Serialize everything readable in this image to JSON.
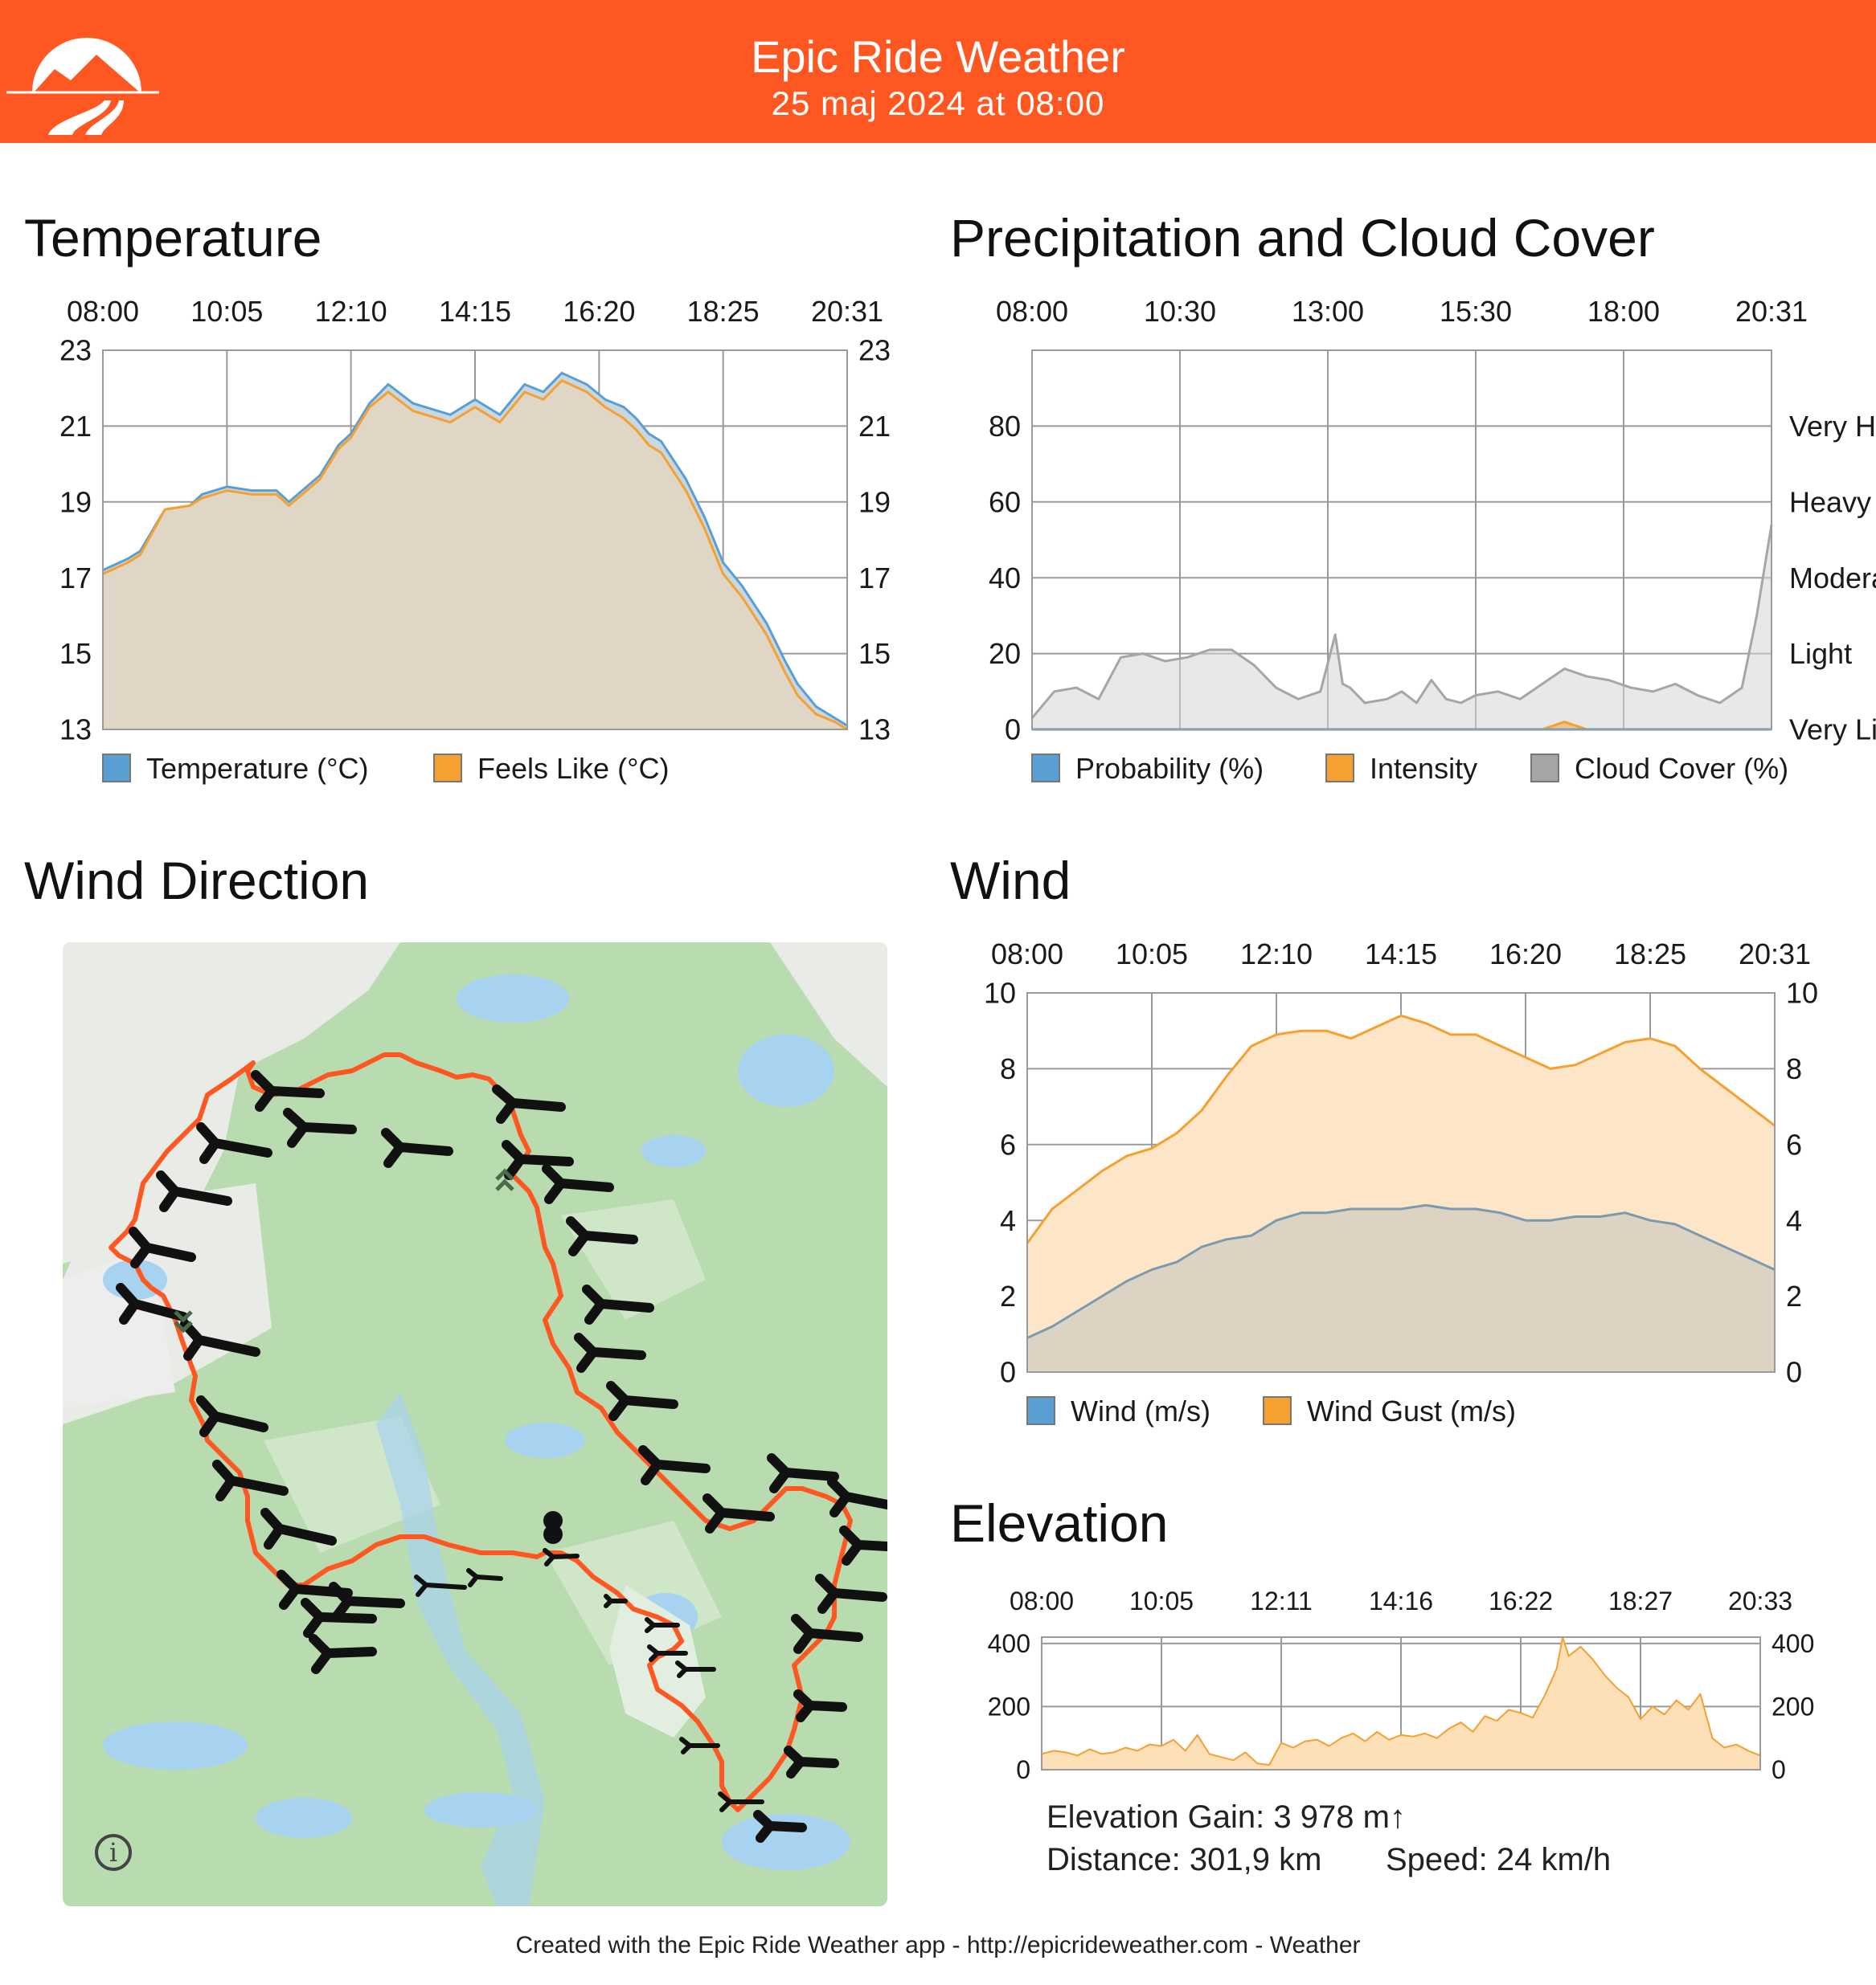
{
  "header": {
    "title": "Epic Ride Weather",
    "subtitle": "25 maj 2024 at 08:00",
    "bg_color": "#ff5722"
  },
  "footer": {
    "text": "Created with the Epic Ride Weather app - http://epicrideweather.com - ",
    "apple_icon": "",
    "weather": "Weather"
  },
  "temperature": {
    "title": "Temperature"
  },
  "precip": {
    "title": "Precipitation and Cloud Cover"
  },
  "wind_dir": {
    "title": "Wind Direction",
    "info_icon": "i"
  },
  "wind": {
    "title": "Wind"
  },
  "elevation": {
    "title": "Elevation",
    "gain": "Elevation Gain: 3 978 m↑",
    "distance": "Distance: 301,9 km",
    "speed": "Speed: 24 km/h"
  },
  "chart_data": [
    {
      "id": "temperature",
      "type": "area",
      "title": "Temperature",
      "x_ticks": [
        "08:00",
        "10:05",
        "12:10",
        "14:15",
        "16:20",
        "18:25",
        "20:31"
      ],
      "ylim": [
        13,
        23
      ],
      "y_ticks": [
        13,
        15,
        17,
        19,
        21,
        23
      ],
      "grid": true,
      "legend": "bottom",
      "x": [
        0,
        0.2,
        0.3,
        0.5,
        0.7,
        0.8,
        1,
        1.2,
        1.4,
        1.5,
        1.75,
        1.9,
        2,
        2.15,
        2.3,
        2.5,
        2.6,
        2.8,
        3,
        3.2,
        3.4,
        3.55,
        3.7,
        3.9,
        4.05,
        4.2,
        4.3,
        4.4,
        4.5,
        4.6,
        4.7,
        4.85,
        5,
        5.15,
        5.35,
        5.5,
        5.6,
        5.75,
        5.9,
        6
      ],
      "series": [
        {
          "name": "Temperature (°C)",
          "color": "#5a9fd4",
          "values": [
            17.2,
            17.5,
            17.7,
            18.8,
            18.9,
            19.2,
            19.4,
            19.3,
            19.3,
            19.0,
            19.7,
            20.5,
            20.8,
            21.6,
            22.1,
            21.6,
            21.5,
            21.3,
            21.7,
            21.3,
            22.1,
            21.9,
            22.4,
            22.1,
            21.7,
            21.5,
            21.2,
            20.8,
            20.6,
            20.1,
            19.6,
            18.6,
            17.4,
            16.8,
            15.8,
            14.8,
            14.2,
            13.6,
            13.3,
            13.1
          ]
        },
        {
          "name": "Feels Like (°C)",
          "color": "#f5a030",
          "values": [
            17.1,
            17.4,
            17.6,
            18.8,
            18.9,
            19.1,
            19.3,
            19.2,
            19.2,
            18.9,
            19.6,
            20.4,
            20.7,
            21.5,
            21.9,
            21.4,
            21.3,
            21.1,
            21.5,
            21.1,
            21.9,
            21.7,
            22.2,
            21.9,
            21.5,
            21.2,
            20.9,
            20.5,
            20.3,
            19.8,
            19.3,
            18.3,
            17.1,
            16.5,
            15.5,
            14.5,
            13.9,
            13.4,
            13.2,
            13.0
          ]
        }
      ]
    },
    {
      "id": "precipitation",
      "type": "area",
      "title": "Precipitation and Cloud Cover",
      "x_ticks": [
        "08:00",
        "10:30",
        "13:00",
        "15:30",
        "18:00",
        "20:31"
      ],
      "ylim": [
        0,
        100
      ],
      "y_ticks": [
        0,
        20,
        40,
        60,
        80
      ],
      "y2_ticks": [
        "Very Light",
        "Light",
        "Moderate",
        "Heavy",
        "Very Heavy"
      ],
      "grid": true,
      "legend": "bottom",
      "x": [
        0,
        0.15,
        0.3,
        0.45,
        0.6,
        0.75,
        0.9,
        1.05,
        1.2,
        1.35,
        1.5,
        1.65,
        1.8,
        1.95,
        2.05,
        2.1,
        2.15,
        2.25,
        2.4,
        2.5,
        2.6,
        2.7,
        2.8,
        2.9,
        3.0,
        3.15,
        3.3,
        3.45,
        3.6,
        3.75,
        3.9,
        4.05,
        4.2,
        4.35,
        4.5,
        4.65,
        4.8,
        4.9,
        5
      ],
      "series": [
        {
          "name": "Probability (%)",
          "color": "#5a9fd4",
          "values": [
            0,
            0,
            0,
            0,
            0,
            0,
            0,
            0,
            0,
            0,
            0,
            0,
            0,
            0,
            0,
            0,
            0,
            0,
            0,
            0,
            0,
            0,
            0,
            0,
            0,
            0,
            0,
            0,
            0,
            0,
            0,
            0,
            0,
            0,
            0,
            0,
            0,
            0,
            0
          ]
        },
        {
          "name": "Intensity",
          "color": "#f5a030",
          "values": [
            0,
            0,
            0,
            0,
            0,
            0,
            0,
            0,
            0,
            0,
            0,
            0,
            0,
            0,
            0,
            0,
            0,
            0,
            0,
            0,
            0,
            0,
            0,
            0,
            0,
            0,
            0,
            0,
            2,
            0,
            0,
            0,
            0,
            0,
            0,
            0,
            0,
            0,
            0
          ]
        },
        {
          "name": "Cloud Cover (%)",
          "color": "#a6a6a6",
          "values": [
            3,
            10,
            11,
            8,
            19,
            20,
            18,
            19,
            21,
            21,
            17,
            11,
            8,
            10,
            25,
            12,
            11,
            7,
            8,
            10,
            7,
            13,
            8,
            7,
            9,
            10,
            8,
            12,
            16,
            14,
            13,
            11,
            10,
            12,
            9,
            7,
            11,
            30,
            54
          ]
        }
      ]
    },
    {
      "id": "wind",
      "type": "area",
      "title": "Wind",
      "x_ticks": [
        "08:00",
        "10:05",
        "12:10",
        "14:15",
        "16:20",
        "18:25",
        "20:31"
      ],
      "ylim": [
        0,
        10
      ],
      "y_ticks": [
        0,
        2,
        4,
        6,
        8,
        10
      ],
      "grid": true,
      "legend": "bottom",
      "x": [
        0,
        0.2,
        0.4,
        0.6,
        0.8,
        1,
        1.2,
        1.4,
        1.6,
        1.8,
        2,
        2.2,
        2.4,
        2.6,
        2.8,
        3,
        3.2,
        3.4,
        3.6,
        3.8,
        4,
        4.2,
        4.4,
        4.6,
        4.8,
        5,
        5.2,
        5.4,
        5.6,
        5.8,
        6
      ],
      "series": [
        {
          "name": "Wind (m/s)",
          "color": "#5a9fd4",
          "values": [
            0.9,
            1.2,
            1.6,
            2.0,
            2.4,
            2.7,
            2.9,
            3.3,
            3.5,
            3.6,
            4.0,
            4.2,
            4.2,
            4.3,
            4.3,
            4.3,
            4.4,
            4.3,
            4.3,
            4.2,
            4.0,
            4.0,
            4.1,
            4.1,
            4.2,
            4.0,
            3.9,
            3.6,
            3.3,
            3.0,
            2.7
          ]
        },
        {
          "name": "Wind Gust (m/s)",
          "color": "#f5a030",
          "values": [
            3.4,
            4.3,
            4.8,
            5.3,
            5.7,
            5.9,
            6.3,
            6.9,
            7.8,
            8.6,
            8.9,
            9.0,
            9.0,
            8.8,
            9.1,
            9.4,
            9.2,
            8.9,
            8.9,
            8.6,
            8.3,
            8.0,
            8.1,
            8.4,
            8.7,
            8.8,
            8.6,
            8.0,
            7.5,
            7.0,
            6.5
          ]
        }
      ]
    },
    {
      "id": "elevation",
      "type": "area",
      "title": "Elevation",
      "x_ticks": [
        "08:00",
        "10:05",
        "12:11",
        "14:16",
        "16:22",
        "18:27",
        "20:33"
      ],
      "ylim": [
        0,
        420
      ],
      "y_ticks": [
        0,
        200,
        400
      ],
      "grid": true,
      "x": [
        0,
        0.1,
        0.2,
        0.3,
        0.4,
        0.5,
        0.6,
        0.7,
        0.8,
        0.9,
        1.0,
        1.1,
        1.2,
        1.3,
        1.4,
        1.5,
        1.6,
        1.7,
        1.8,
        1.9,
        2.0,
        2.1,
        2.2,
        2.3,
        2.4,
        2.5,
        2.6,
        2.7,
        2.8,
        2.9,
        3.0,
        3.1,
        3.2,
        3.3,
        3.4,
        3.5,
        3.6,
        3.7,
        3.8,
        3.9,
        4.0,
        4.1,
        4.2,
        4.3,
        4.35,
        4.4,
        4.5,
        4.6,
        4.7,
        4.8,
        4.9,
        5.0,
        5.1,
        5.2,
        5.3,
        5.4,
        5.5,
        5.6,
        5.7,
        5.8,
        5.9,
        6.0
      ],
      "series": [
        {
          "name": "Elevation",
          "color": "#f5a030",
          "values": [
            50,
            60,
            55,
            45,
            65,
            50,
            55,
            70,
            60,
            80,
            75,
            95,
            60,
            110,
            50,
            40,
            30,
            55,
            20,
            15,
            85,
            70,
            90,
            95,
            75,
            100,
            115,
            90,
            120,
            95,
            110,
            105,
            115,
            100,
            130,
            150,
            120,
            170,
            155,
            190,
            180,
            165,
            235,
            320,
            420,
            360,
            390,
            350,
            300,
            260,
            230,
            160,
            200,
            175,
            220,
            190,
            240,
            100,
            70,
            80,
            60,
            45
          ]
        }
      ]
    }
  ]
}
